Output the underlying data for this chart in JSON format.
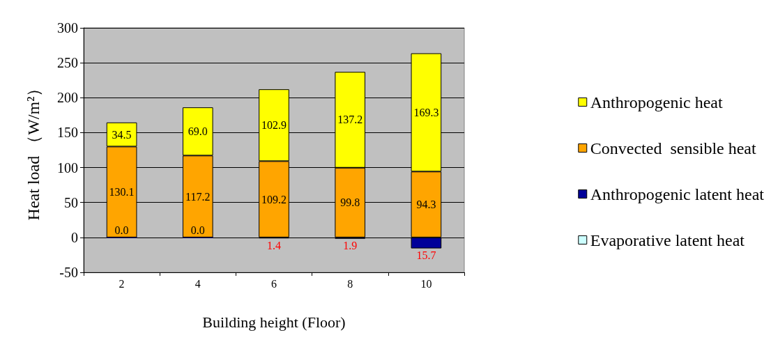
{
  "chart_data": {
    "type": "bar",
    "stacked": true,
    "xlabel": "Building height (Floor)",
    "ylabel": "Heat load （W/m²）",
    "categories": [
      "2",
      "4",
      "6",
      "8",
      "10"
    ],
    "ylim": [
      -50,
      300
    ],
    "yticks": [
      -50,
      0,
      50,
      100,
      150,
      200,
      250,
      300
    ],
    "grid": "y",
    "legend": "right",
    "annotations": [
      {
        "text": "0.0",
        "x": "2",
        "y": 0
      },
      {
        "text": "0.0",
        "x": "4",
        "y": 0
      },
      {
        "text": "1.4",
        "x": "6",
        "y": -1.4
      },
      {
        "text": "1.9",
        "x": "8",
        "y": -1.9
      },
      {
        "text": "15.7",
        "x": "10",
        "y": -15.7
      }
    ],
    "series": [
      {
        "name": "Evaporative latent heat",
        "color": "#ccffff",
        "values": [
          null,
          null,
          null,
          null,
          null
        ]
      },
      {
        "name": "Anthropogenic latent heat",
        "color": "#000099",
        "values": [
          0,
          0,
          -1.4,
          -1.9,
          -15.7
        ]
      },
      {
        "name": "Convected  sensible heat",
        "color": "#ffa500",
        "values": [
          130.1,
          117.2,
          109.2,
          99.8,
          94.3
        ],
        "value_labels": [
          "130.1",
          "117.2",
          "109.2",
          "99.8",
          "94.3"
        ]
      },
      {
        "name": "Anthropogenic heat",
        "color": "#ffff00",
        "values": [
          34.5,
          69.0,
          102.9,
          137.2,
          169.3
        ],
        "value_labels": [
          "34.5",
          "69.0",
          "102.9",
          "137.2",
          "169.3"
        ]
      }
    ]
  }
}
